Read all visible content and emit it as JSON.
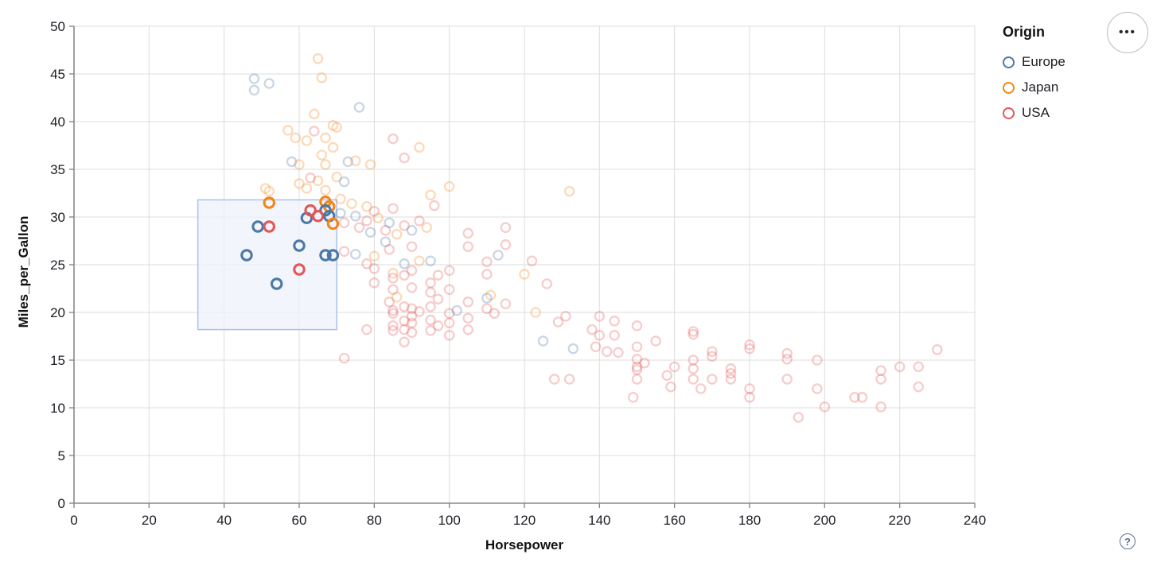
{
  "controls": {
    "menu_icon": "•••",
    "help_icon": "?"
  },
  "legend": {
    "title": "Origin",
    "items": [
      {
        "label": "Europe",
        "origin": "E",
        "color": "#4c78a8"
      },
      {
        "label": "Japan",
        "origin": "J",
        "color": "#f58518"
      },
      {
        "label": "USA",
        "origin": "U",
        "color": "#e45756"
      }
    ]
  },
  "chart_data": {
    "type": "scatter",
    "title": "",
    "xlabel": "Horsepower",
    "ylabel": "Miles_per_Gallon",
    "xlim": [
      0,
      240
    ],
    "ylim": [
      0,
      50
    ],
    "x_ticks": [
      0,
      20,
      40,
      60,
      80,
      100,
      120,
      140,
      160,
      180,
      200,
      220,
      240
    ],
    "y_ticks": [
      0,
      5,
      10,
      15,
      20,
      25,
      30,
      35,
      40,
      45,
      50
    ],
    "grid": true,
    "legend_position": "top-right",
    "mark": "open-circle",
    "colors": {
      "E": "#4c78a8",
      "J": "#f58518",
      "U": "#e45756"
    },
    "unselected_opacity": 0.3,
    "brush_selection": {
      "x": [
        33,
        70
      ],
      "y": [
        18.2,
        31.8
      ],
      "fill": "#edf3fb",
      "stroke": "#aec4ee"
    },
    "points_format": [
      "horsepower",
      "mpg",
      "origin",
      "selected"
    ],
    "points": [
      [
        52,
        31.5,
        "J",
        1
      ],
      [
        49,
        29,
        "E",
        1
      ],
      [
        52,
        29,
        "U",
        1
      ],
      [
        46,
        26,
        "E",
        1
      ],
      [
        54,
        23,
        "E",
        1
      ],
      [
        60,
        27,
        "E",
        1
      ],
      [
        60,
        24.5,
        "U",
        1
      ],
      [
        67,
        26,
        "E",
        1
      ],
      [
        69,
        26,
        "E",
        1
      ],
      [
        62,
        29.9,
        "E",
        1
      ],
      [
        63,
        30.7,
        "U",
        1
      ],
      [
        67,
        31.6,
        "J",
        1
      ],
      [
        68,
        31.1,
        "J",
        1
      ],
      [
        67,
        30.7,
        "E",
        1
      ],
      [
        65,
        30.1,
        "U",
        1
      ],
      [
        68,
        30.1,
        "E",
        1
      ],
      [
        69,
        29.3,
        "J",
        1
      ],
      [
        65,
        46.6,
        "J",
        0
      ],
      [
        66,
        44.6,
        "J",
        0
      ],
      [
        48,
        44.5,
        "E",
        0
      ],
      [
        52,
        44,
        "E",
        0
      ],
      [
        48,
        43.3,
        "E",
        0
      ],
      [
        76,
        41.5,
        "E",
        0
      ],
      [
        64,
        40.8,
        "J",
        0
      ],
      [
        70,
        39.4,
        "J",
        0
      ],
      [
        57,
        39.1,
        "J",
        0
      ],
      [
        59,
        38.3,
        "J",
        0
      ],
      [
        62,
        38,
        "J",
        0
      ],
      [
        64,
        39,
        "U",
        0
      ],
      [
        67,
        38.3,
        "J",
        0
      ],
      [
        69,
        39.6,
        "J",
        0
      ],
      [
        85,
        38.2,
        "U",
        0
      ],
      [
        92,
        37.3,
        "J",
        0
      ],
      [
        88,
        36.2,
        "U",
        0
      ],
      [
        69,
        37.3,
        "J",
        0
      ],
      [
        58,
        35.8,
        "E",
        0
      ],
      [
        60,
        35.5,
        "J",
        0
      ],
      [
        66,
        36.5,
        "J",
        0
      ],
      [
        67,
        35.5,
        "J",
        0
      ],
      [
        73,
        35.8,
        "E",
        0
      ],
      [
        75,
        35.9,
        "J",
        0
      ],
      [
        79,
        35.5,
        "J",
        0
      ],
      [
        95,
        32.3,
        "J",
        0
      ],
      [
        100,
        33.2,
        "J",
        0
      ],
      [
        132,
        32.7,
        "J",
        0
      ],
      [
        51,
        33,
        "J",
        0
      ],
      [
        52,
        32.7,
        "J",
        0
      ],
      [
        60,
        33.5,
        "J",
        0
      ],
      [
        65,
        33.8,
        "J",
        0
      ],
      [
        63,
        34.1,
        "U",
        0
      ],
      [
        70,
        34.2,
        "J",
        0
      ],
      [
        67,
        32.8,
        "J",
        0
      ],
      [
        72,
        33.7,
        "E",
        0
      ],
      [
        62,
        33,
        "J",
        0
      ],
      [
        71,
        31.9,
        "J",
        0
      ],
      [
        71,
        30.4,
        "E",
        0
      ],
      [
        72,
        29.4,
        "U",
        0
      ],
      [
        74,
        31.4,
        "J",
        0
      ],
      [
        75,
        30.1,
        "E",
        0
      ],
      [
        76,
        28.9,
        "U",
        0
      ],
      [
        78,
        31.1,
        "J",
        0
      ],
      [
        78,
        29.6,
        "U",
        0
      ],
      [
        79,
        28.4,
        "E",
        0
      ],
      [
        80,
        30.6,
        "U",
        0
      ],
      [
        81,
        29.9,
        "J",
        0
      ],
      [
        83,
        28.6,
        "U",
        0
      ],
      [
        84,
        29.4,
        "E",
        0
      ],
      [
        85,
        30.9,
        "U",
        0
      ],
      [
        86,
        28.2,
        "J",
        0
      ],
      [
        88,
        29.1,
        "U",
        0
      ],
      [
        90,
        28.6,
        "E",
        0
      ],
      [
        92,
        29.6,
        "U",
        0
      ],
      [
        94,
        28.9,
        "J",
        0
      ],
      [
        96,
        31.2,
        "U",
        0
      ],
      [
        105,
        28.3,
        "U",
        0
      ],
      [
        105,
        26.9,
        "U",
        0
      ],
      [
        110,
        25.3,
        "U",
        0
      ],
      [
        110,
        24,
        "U",
        0
      ],
      [
        115,
        28.9,
        "U",
        0
      ],
      [
        115,
        27.1,
        "U",
        0
      ],
      [
        113,
        26,
        "E",
        0
      ],
      [
        120,
        24,
        "J",
        0
      ],
      [
        126,
        23,
        "U",
        0
      ],
      [
        122,
        25.4,
        "U",
        0
      ],
      [
        72,
        26.4,
        "U",
        0
      ],
      [
        75,
        26.1,
        "E",
        0
      ],
      [
        78,
        25.1,
        "U",
        0
      ],
      [
        80,
        24.6,
        "U",
        0
      ],
      [
        80,
        25.9,
        "J",
        0
      ],
      [
        80,
        23.1,
        "U",
        0
      ],
      [
        83,
        27.4,
        "E",
        0
      ],
      [
        84,
        26.6,
        "U",
        0
      ],
      [
        85,
        24.1,
        "J",
        0
      ],
      [
        85,
        23.6,
        "U",
        0
      ],
      [
        85,
        22.4,
        "U",
        0
      ],
      [
        88,
        25.1,
        "E",
        0
      ],
      [
        88,
        23.9,
        "U",
        0
      ],
      [
        90,
        26.9,
        "U",
        0
      ],
      [
        90,
        24.4,
        "U",
        0
      ],
      [
        90,
        22.6,
        "U",
        0
      ],
      [
        92,
        25.4,
        "J",
        0
      ],
      [
        95,
        23.1,
        "U",
        0
      ],
      [
        95,
        22.1,
        "U",
        0
      ],
      [
        95,
        25.4,
        "E",
        0
      ],
      [
        97,
        23.9,
        "U",
        0
      ],
      [
        100,
        24.4,
        "U",
        0
      ],
      [
        100,
        22.4,
        "U",
        0
      ],
      [
        84,
        21.1,
        "U",
        0
      ],
      [
        85,
        20.2,
        "U",
        0
      ],
      [
        85,
        19.9,
        "U",
        0
      ],
      [
        86,
        21.6,
        "J",
        0
      ],
      [
        88,
        20.6,
        "U",
        0
      ],
      [
        90,
        20.4,
        "U",
        0
      ],
      [
        90,
        19.6,
        "U",
        0
      ],
      [
        92,
        20.1,
        "U",
        0
      ],
      [
        95,
        20.6,
        "U",
        0
      ],
      [
        97,
        21.4,
        "U",
        0
      ],
      [
        100,
        19.9,
        "U",
        0
      ],
      [
        102,
        20.2,
        "E",
        0
      ],
      [
        105,
        21.1,
        "U",
        0
      ],
      [
        110,
        20.4,
        "U",
        0
      ],
      [
        112,
        19.9,
        "U",
        0
      ],
      [
        115,
        20.9,
        "U",
        0
      ],
      [
        110,
        21.5,
        "E",
        0
      ],
      [
        111,
        21.8,
        "J",
        0
      ],
      [
        123,
        20,
        "J",
        0
      ],
      [
        85,
        18.6,
        "U",
        0
      ],
      [
        85,
        18.1,
        "U",
        0
      ],
      [
        88,
        19.1,
        "U",
        0
      ],
      [
        88,
        18.2,
        "U",
        0
      ],
      [
        90,
        18.9,
        "U",
        0
      ],
      [
        90,
        17.9,
        "U",
        0
      ],
      [
        95,
        19.2,
        "U",
        0
      ],
      [
        95,
        18.1,
        "U",
        0
      ],
      [
        97,
        18.6,
        "U",
        0
      ],
      [
        100,
        18.9,
        "U",
        0
      ],
      [
        100,
        17.6,
        "U",
        0
      ],
      [
        105,
        19.4,
        "U",
        0
      ],
      [
        105,
        18.2,
        "U",
        0
      ],
      [
        88,
        16.9,
        "U",
        0
      ],
      [
        78,
        18.2,
        "U",
        0
      ],
      [
        72,
        15.2,
        "U",
        0
      ],
      [
        125,
        17,
        "E",
        0
      ],
      [
        133,
        16.2,
        "E",
        0
      ],
      [
        129,
        19,
        "U",
        0
      ],
      [
        131,
        19.6,
        "U",
        0
      ],
      [
        138,
        18.2,
        "U",
        0
      ],
      [
        140,
        19.6,
        "U",
        0
      ],
      [
        140,
        17.6,
        "U",
        0
      ],
      [
        139,
        16.4,
        "U",
        0
      ],
      [
        142,
        15.9,
        "U",
        0
      ],
      [
        144,
        19.1,
        "U",
        0
      ],
      [
        144,
        17.6,
        "U",
        0
      ],
      [
        145,
        15.8,
        "U",
        0
      ],
      [
        128,
        13,
        "U",
        0
      ],
      [
        132,
        13,
        "U",
        0
      ],
      [
        150,
        18.6,
        "U",
        0
      ],
      [
        150,
        16.4,
        "U",
        0
      ],
      [
        150,
        15.1,
        "U",
        0
      ],
      [
        150,
        14.3,
        "U",
        0
      ],
      [
        150,
        14,
        "U",
        0
      ],
      [
        150,
        13,
        "U",
        0
      ],
      [
        149,
        11.1,
        "U",
        0
      ],
      [
        152,
        14.7,
        "U",
        0
      ],
      [
        155,
        17,
        "U",
        0
      ],
      [
        158,
        13.4,
        "U",
        0
      ],
      [
        160,
        14.3,
        "U",
        0
      ],
      [
        159,
        12.2,
        "U",
        0
      ],
      [
        165,
        18,
        "U",
        0
      ],
      [
        165,
        17.7,
        "U",
        0
      ],
      [
        170,
        15.9,
        "U",
        0
      ],
      [
        170,
        15.4,
        "U",
        0
      ],
      [
        165,
        15,
        "U",
        0
      ],
      [
        165,
        14.1,
        "U",
        0
      ],
      [
        165,
        13,
        "U",
        0
      ],
      [
        167,
        12,
        "U",
        0
      ],
      [
        170,
        13,
        "U",
        0
      ],
      [
        175,
        14.1,
        "U",
        0
      ],
      [
        175,
        13.6,
        "U",
        0
      ],
      [
        175,
        13,
        "U",
        0
      ],
      [
        180,
        16.6,
        "U",
        0
      ],
      [
        180,
        16.2,
        "U",
        0
      ],
      [
        180,
        12,
        "U",
        0
      ],
      [
        180,
        11.1,
        "U",
        0
      ],
      [
        190,
        15.7,
        "U",
        0
      ],
      [
        190,
        15.1,
        "U",
        0
      ],
      [
        190,
        13,
        "U",
        0
      ],
      [
        193,
        9,
        "U",
        0
      ],
      [
        198,
        15,
        "U",
        0
      ],
      [
        198,
        12,
        "U",
        0
      ],
      [
        200,
        10.1,
        "U",
        0
      ],
      [
        208,
        11.1,
        "U",
        0
      ],
      [
        210,
        11.1,
        "U",
        0
      ],
      [
        215,
        13.9,
        "U",
        0
      ],
      [
        215,
        13,
        "U",
        0
      ],
      [
        215,
        10.1,
        "U",
        0
      ],
      [
        220,
        14.3,
        "U",
        0
      ],
      [
        225,
        14.3,
        "U",
        0
      ],
      [
        225,
        12.2,
        "U",
        0
      ],
      [
        230,
        16.1,
        "U",
        0
      ]
    ]
  }
}
